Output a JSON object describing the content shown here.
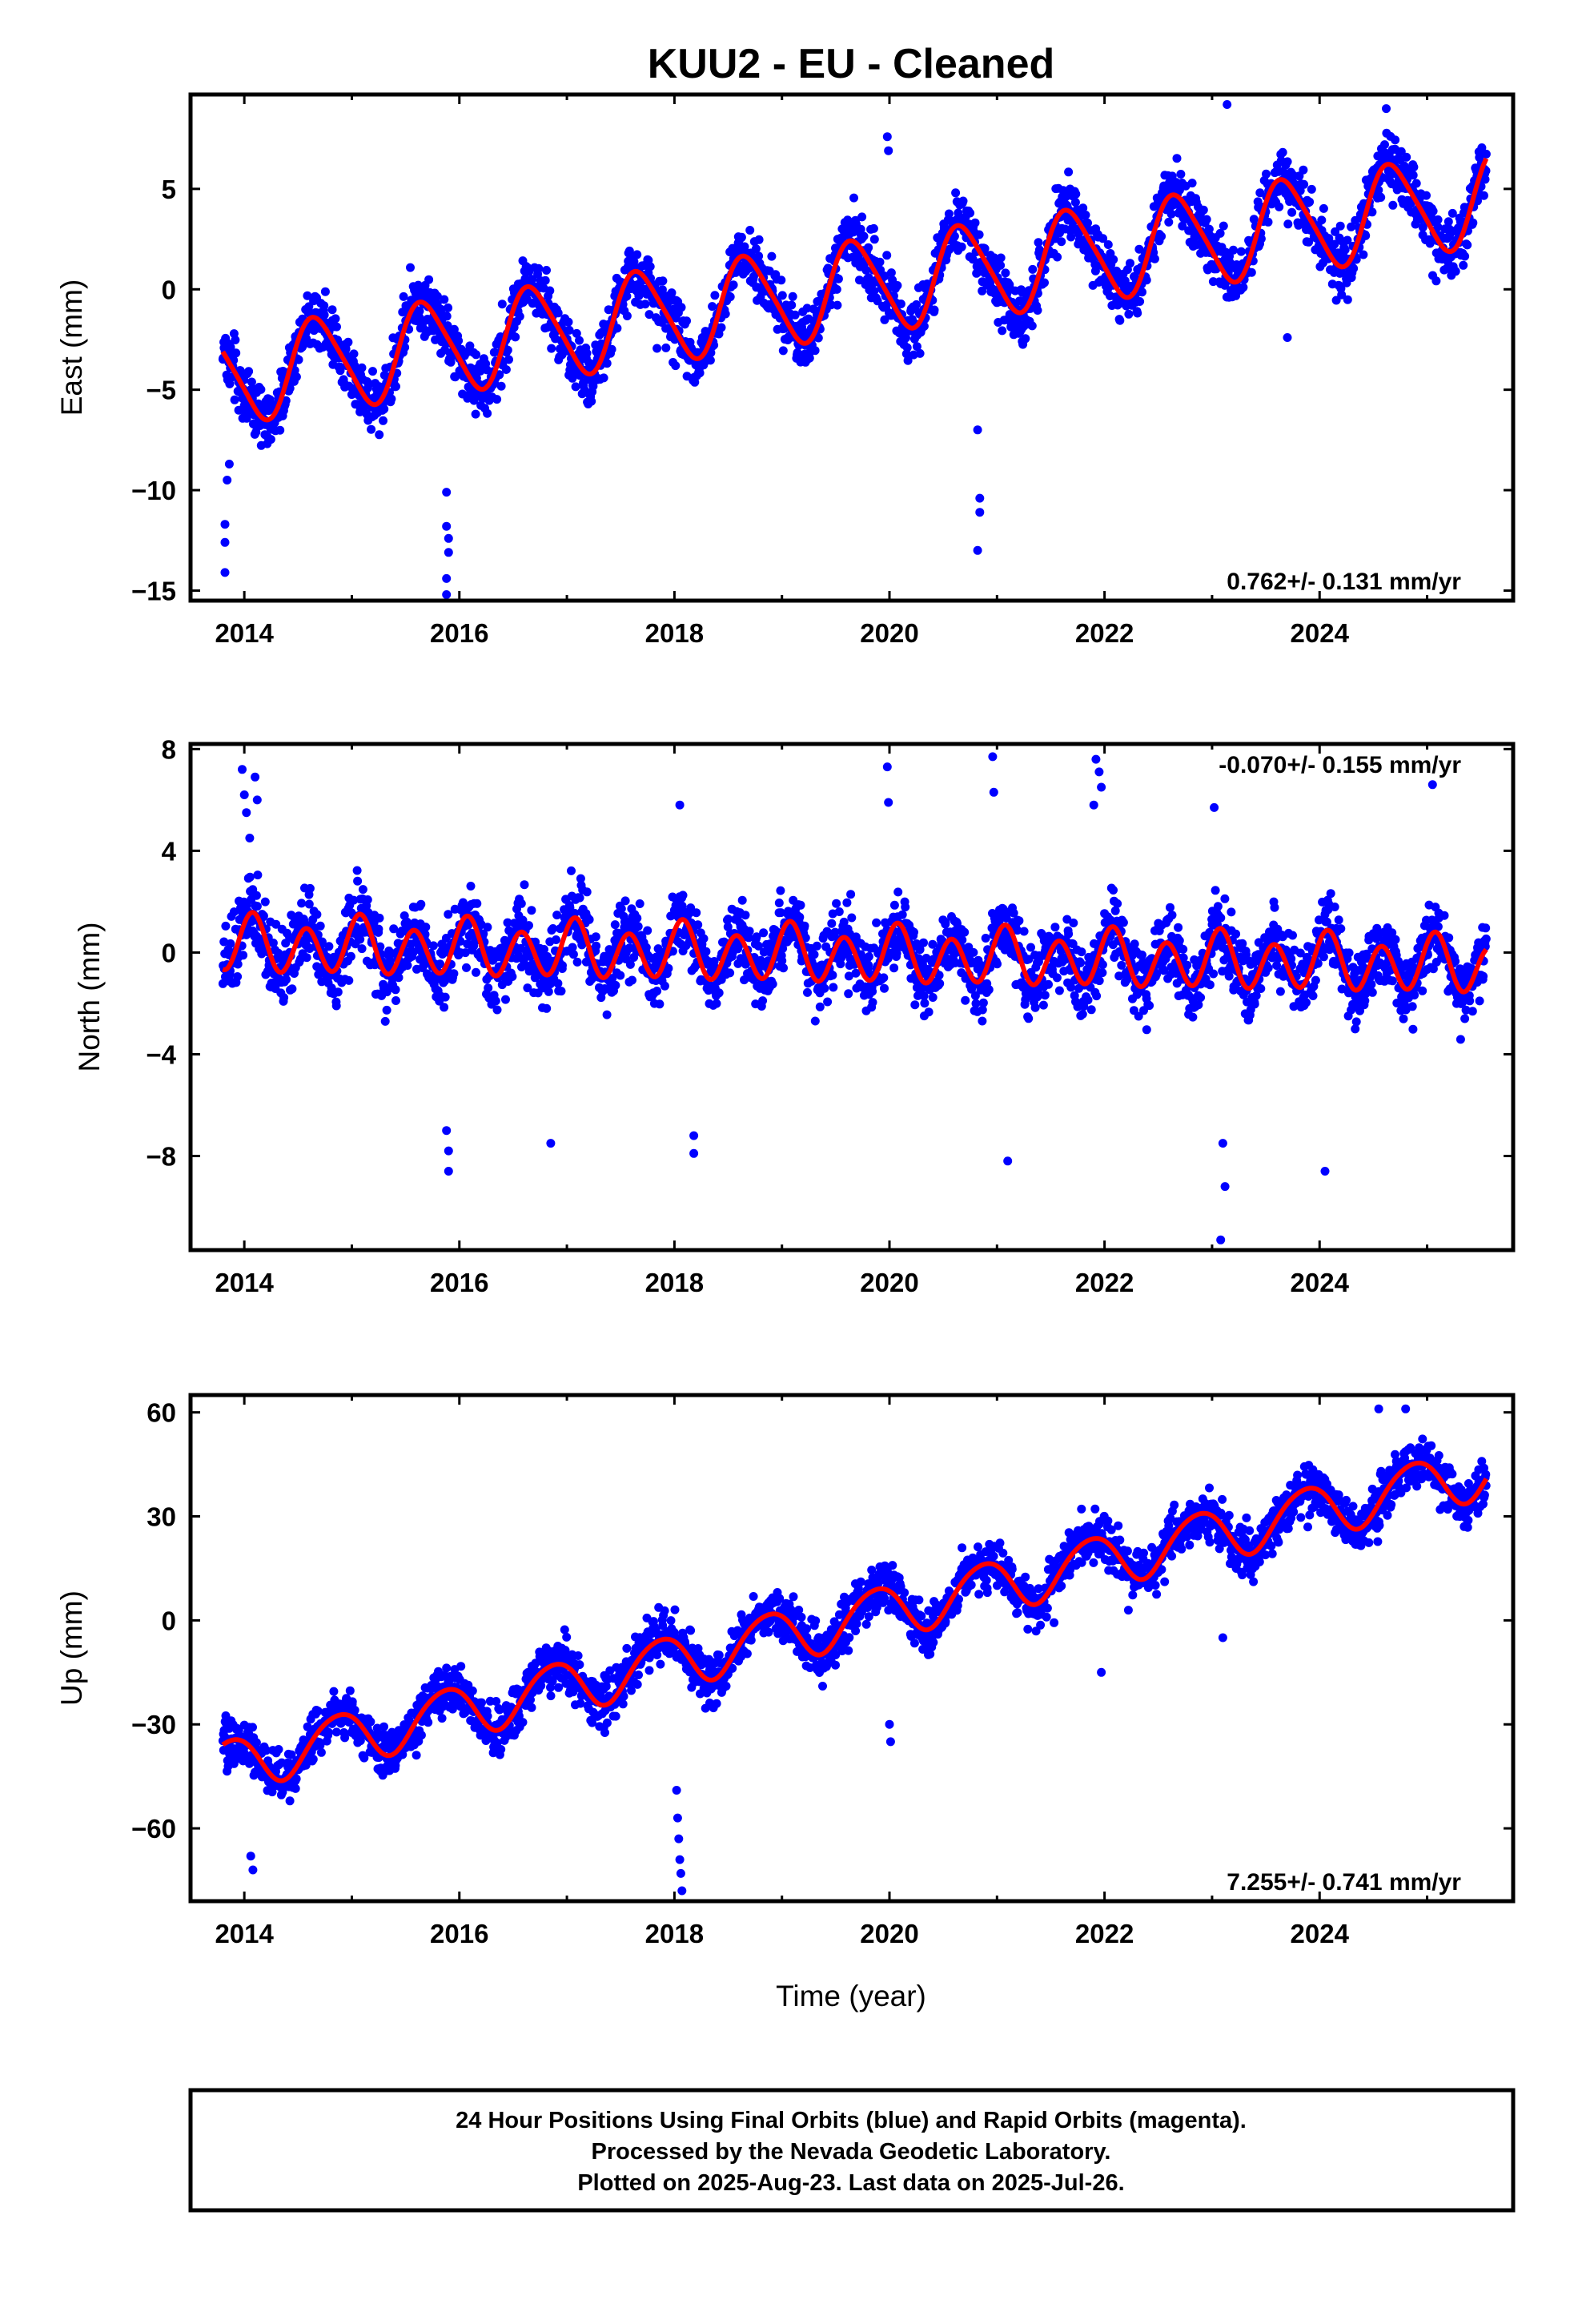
{
  "title": "KUU2  - EU - Cleaned",
  "footer": {
    "lines": [
      "24 Hour Positions Using Final Orbits (blue) and Rapid Orbits (magenta).",
      "Processed by the Nevada Geodetic Laboratory.",
      "Plotted on 2025-Aug-23. Last data on 2025-Jul-26."
    ]
  },
  "colors": {
    "observations": "#0000ff",
    "model": "#ff0000",
    "frame": "#000000"
  },
  "chart_data": [
    {
      "type": "scatter",
      "component": "east",
      "ylabel": "East (mm)",
      "xlabel": "",
      "rate_label": "0.762+/- 0.131 mm/yr",
      "rate_position": "bottom-right",
      "xlim": [
        2013.5,
        2025.8
      ],
      "ylim": [
        -15.5,
        9.7
      ],
      "xticks": [
        2014,
        2016,
        2018,
        2020,
        2022,
        2024
      ],
      "yticks": [
        -15,
        -10,
        -5,
        0,
        5
      ],
      "ytick_labels": [
        "−15",
        "−10",
        "−5",
        "0",
        "5"
      ],
      "data_start": 2013.8,
      "data_end": 2025.55,
      "trend_anchor": {
        "x": 2013.8,
        "y": -4.4
      },
      "rate": 0.762,
      "rate_sigma": 0.131,
      "seasonal": {
        "annual_amplitude": 2.3,
        "annual_phase": 3.6,
        "semiannual_amplitude": 0.35,
        "semiannual_phase": 1.0
      },
      "scatter_sd": 1.05,
      "outliers": [
        {
          "x": 2013.82,
          "y": -14.1
        },
        {
          "x": 2013.82,
          "y": -12.6
        },
        {
          "x": 2013.82,
          "y": -11.7
        },
        {
          "x": 2013.84,
          "y": -9.5
        },
        {
          "x": 2013.86,
          "y": -8.7
        },
        {
          "x": 2015.88,
          "y": -10.1
        },
        {
          "x": 2015.88,
          "y": -11.8
        },
        {
          "x": 2015.9,
          "y": -12.4
        },
        {
          "x": 2015.9,
          "y": -13.1
        },
        {
          "x": 2015.88,
          "y": -14.4
        },
        {
          "x": 2015.88,
          "y": -15.2
        },
        {
          "x": 2020.82,
          "y": -7.0
        },
        {
          "x": 2020.84,
          "y": -10.4
        },
        {
          "x": 2020.84,
          "y": -11.1
        },
        {
          "x": 2020.82,
          "y": -13.0
        },
        {
          "x": 2019.98,
          "y": 7.6
        },
        {
          "x": 2019.99,
          "y": 6.9
        },
        {
          "x": 2023.14,
          "y": 9.2
        },
        {
          "x": 2024.62,
          "y": 9.0
        },
        {
          "x": 2023.7,
          "y": -2.4
        }
      ]
    },
    {
      "type": "scatter",
      "component": "north",
      "ylabel": "North (mm)",
      "xlabel": "",
      "rate_label": "-0.070+/- 0.155 mm/yr",
      "rate_position": "top-right",
      "xlim": [
        2013.5,
        2025.8
      ],
      "ylim": [
        -11.7,
        8.2
      ],
      "xticks": [
        2014,
        2016,
        2018,
        2020,
        2022,
        2024
      ],
      "yticks": [
        -8,
        -4,
        0,
        4,
        8
      ],
      "ytick_labels": [
        "−8",
        "−4",
        "0",
        "4",
        "8"
      ],
      "data_start": 2013.8,
      "data_end": 2025.55,
      "trend_anchor": {
        "x": 2013.8,
        "y": 0.3
      },
      "rate": -0.07,
      "rate_sigma": 0.155,
      "seasonal": {
        "annual_amplitude": 0.3,
        "annual_phase": 1.2,
        "semiannual_amplitude": 1.0,
        "semiannual_phase": 0.6
      },
      "scatter_sd": 1.0,
      "outliers": [
        {
          "x": 2013.98,
          "y": 7.2
        },
        {
          "x": 2014.0,
          "y": 6.2
        },
        {
          "x": 2014.02,
          "y": 5.5
        },
        {
          "x": 2014.05,
          "y": 4.5
        },
        {
          "x": 2014.1,
          "y": 6.9
        },
        {
          "x": 2014.12,
          "y": 6.0
        },
        {
          "x": 2015.88,
          "y": -7.0
        },
        {
          "x": 2015.9,
          "y": -7.8
        },
        {
          "x": 2015.9,
          "y": -8.6
        },
        {
          "x": 2016.85,
          "y": -7.5
        },
        {
          "x": 2018.05,
          "y": 5.8
        },
        {
          "x": 2018.18,
          "y": -7.2
        },
        {
          "x": 2018.18,
          "y": -7.9
        },
        {
          "x": 2019.98,
          "y": 7.3
        },
        {
          "x": 2019.99,
          "y": 5.9
        },
        {
          "x": 2020.96,
          "y": 7.7
        },
        {
          "x": 2020.97,
          "y": 6.3
        },
        {
          "x": 2021.92,
          "y": 7.6
        },
        {
          "x": 2021.95,
          "y": 7.1
        },
        {
          "x": 2021.97,
          "y": 6.5
        },
        {
          "x": 2021.9,
          "y": 5.8
        },
        {
          "x": 2021.1,
          "y": -8.2
        },
        {
          "x": 2023.1,
          "y": -7.5
        },
        {
          "x": 2023.12,
          "y": -9.2
        },
        {
          "x": 2023.08,
          "y": -11.3
        },
        {
          "x": 2024.05,
          "y": -8.6
        },
        {
          "x": 2025.05,
          "y": 6.6
        },
        {
          "x": 2023.02,
          "y": 5.7
        }
      ]
    },
    {
      "type": "scatter",
      "component": "up",
      "ylabel": "Up (mm)",
      "xlabel": "Time (year)",
      "rate_label": "7.255+/- 0.741 mm/yr",
      "rate_position": "bottom-right",
      "xlim": [
        2013.5,
        2025.8
      ],
      "ylim": [
        -81,
        65
      ],
      "xticks": [
        2014,
        2016,
        2018,
        2020,
        2022,
        2024
      ],
      "yticks": [
        -60,
        -30,
        0,
        30,
        60
      ],
      "ytick_labels": [
        "−60",
        "−30",
        "0",
        "30",
        "60"
      ],
      "data_start": 2013.8,
      "data_end": 2025.55,
      "trend_anchor": {
        "x": 2013.8,
        "y": -42
      },
      "rate": 7.255,
      "rate_sigma": 0.741,
      "seasonal": {
        "annual_amplitude": 7.5,
        "annual_phase": 2.4,
        "semiannual_amplitude": 0.8,
        "semiannual_phase": 0.5
      },
      "scatter_sd": 5.0,
      "outliers": [
        {
          "x": 2018.02,
          "y": -49
        },
        {
          "x": 2018.03,
          "y": -57
        },
        {
          "x": 2018.04,
          "y": -63
        },
        {
          "x": 2018.05,
          "y": -69
        },
        {
          "x": 2018.06,
          "y": -73
        },
        {
          "x": 2018.07,
          "y": -78
        },
        {
          "x": 2014.08,
          "y": -72
        },
        {
          "x": 2014.06,
          "y": -68
        },
        {
          "x": 2020.0,
          "y": -30
        },
        {
          "x": 2020.01,
          "y": -35
        },
        {
          "x": 2024.55,
          "y": 61
        },
        {
          "x": 2024.8,
          "y": 61
        },
        {
          "x": 2023.1,
          "y": -5
        },
        {
          "x": 2021.97,
          "y": -15
        }
      ]
    }
  ]
}
